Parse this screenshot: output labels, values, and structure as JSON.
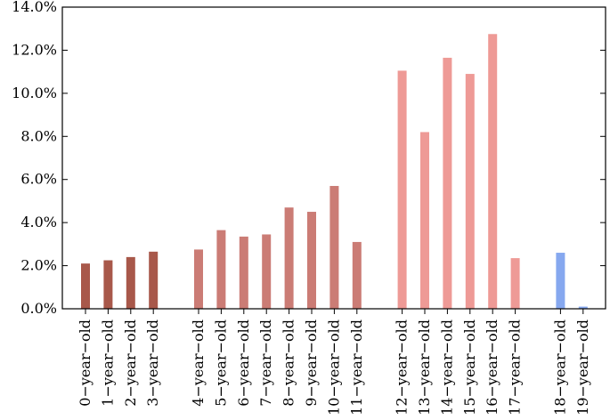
{
  "chart_data": {
    "type": "bar",
    "categories": [
      "0−year−old",
      "1−year−old",
      "2−year−old",
      "3−year−old",
      "4−year−old",
      "5−year−old",
      "6−year−old",
      "7−year−old",
      "8−year−old",
      "9−year−old",
      "10−year−old",
      "11−year−old",
      "12−year−old",
      "13−year−old",
      "14−year−old",
      "15−year−old",
      "16−year−old",
      "17−year−old",
      "18−year−old",
      "19−year−old"
    ],
    "values": [
      2.1,
      2.25,
      2.4,
      2.65,
      2.75,
      3.65,
      3.35,
      3.45,
      4.7,
      4.5,
      5.7,
      3.1,
      11.05,
      8.2,
      11.65,
      10.9,
      12.75,
      2.35,
      2.6,
      0.1
    ],
    "groups": [
      {
        "members": [
          0,
          1,
          2,
          3
        ],
        "color": "#a8584a"
      },
      {
        "members": [
          4,
          5,
          6,
          7,
          8,
          9,
          10,
          11
        ],
        "color": "#cb7c75"
      },
      {
        "members": [
          12,
          13,
          14,
          15,
          16,
          17
        ],
        "color": "#ee9a96"
      },
      {
        "members": [
          18,
          19
        ],
        "color": "#86a8ef"
      }
    ],
    "ylim": [
      0,
      14
    ],
    "yticks": [
      0,
      2,
      4,
      6,
      8,
      10,
      12,
      14
    ],
    "ytick_labels": [
      "0.0%",
      "2.0%",
      "4.0%",
      "6.0%",
      "8.0%",
      "10.0%",
      "12.0%",
      "14.0%"
    ],
    "grid": false,
    "legend": "none",
    "title": "",
    "xlabel": "",
    "ylabel": ""
  }
}
